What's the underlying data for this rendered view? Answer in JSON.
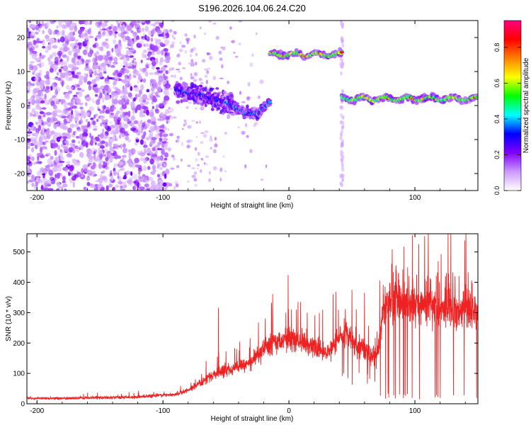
{
  "figure": {
    "title": "S196.2026.104.06.24.C20"
  },
  "chart_data": [
    {
      "type": "heatmap",
      "name": "spectrogram",
      "xlabel": "Height of straight line (km)",
      "ylabel": "Frequency (Hz)",
      "xlim": [
        -208,
        150
      ],
      "ylim": [
        -25,
        25
      ],
      "xticks": [
        -200,
        -100,
        0,
        100
      ],
      "yticks": [
        -20,
        -10,
        0,
        10,
        20
      ],
      "tick_labels_x": [
        "-200",
        "-100",
        "0",
        "100"
      ],
      "tick_labels_y": [
        "-20",
        "-10",
        "0",
        "10",
        "20"
      ],
      "colorbar": {
        "label": "Normalized spectral amplitude",
        "range": [
          0.0,
          0.95
        ],
        "ticks": [
          0.0,
          0.2,
          0.4,
          0.6,
          0.8
        ],
        "tick_labels": [
          "0.0",
          "0.2",
          "0.4",
          "0.6",
          "0.8"
        ],
        "colormap": [
          "#ffffff",
          "#cc99ff",
          "#8000ff",
          "#0000ff",
          "#00ffff",
          "#00ff00",
          "#ffff00",
          "#ff8000",
          "#ff0000",
          "#ff0080"
        ]
      },
      "features": [
        {
          "label": "noise scatter",
          "x_range": [
            -208,
            -96
          ],
          "freq_range": [
            -25,
            25
          ],
          "level": 0.05
        },
        {
          "label": "drifting line",
          "points": [
            [
              -90,
              4.5
            ],
            [
              -70,
              3.0
            ],
            [
              -55,
              1.5
            ],
            [
              -45,
              0.0
            ],
            [
              -35,
              -2.0
            ],
            [
              -25,
              -2.5
            ],
            [
              -15,
              1.0
            ]
          ],
          "level": 0.4
        },
        {
          "label": "line near 15 Hz",
          "x_range": [
            -15,
            42
          ],
          "freq": 15.0,
          "level": 0.8
        },
        {
          "label": "line near 2 Hz",
          "x_range": [
            42,
            150
          ],
          "freq": 2.0,
          "level": 0.8
        }
      ]
    },
    {
      "type": "line",
      "name": "snr",
      "xlabel": "Height of straight line (km)",
      "ylabel": "SNR (10 * v/v)",
      "xlim": [
        -208,
        150
      ],
      "ylim": [
        0,
        560
      ],
      "xticks": [
        -200,
        -100,
        0,
        100
      ],
      "yticks": [
        0,
        100,
        200,
        300,
        400,
        500
      ],
      "tick_labels_x": [
        "-200",
        "-100",
        "0",
        "100"
      ],
      "tick_labels_y": [
        "0",
        "100",
        "200",
        "300",
        "400",
        "500"
      ],
      "color": "#ee2222",
      "series": [
        {
          "name": "SNR envelope",
          "x": [
            -208,
            -180,
            -150,
            -120,
            -100,
            -90,
            -80,
            -70,
            -60,
            -50,
            -40,
            -30,
            -20,
            -10,
            0,
            10,
            20,
            30,
            35,
            40,
            45,
            50,
            55,
            60,
            65,
            70,
            75,
            80,
            90,
            98,
            100,
            110,
            120,
            130,
            140,
            150
          ],
          "y": [
            18,
            18,
            20,
            22,
            28,
            30,
            45,
            70,
            95,
            110,
            120,
            140,
            180,
            205,
            215,
            200,
            185,
            170,
            190,
            220,
            230,
            210,
            190,
            180,
            160,
            150,
            320,
            330,
            325,
            320,
            318,
            322,
            315,
            310,
            308,
            305
          ]
        }
      ],
      "peaks": [
        {
          "x": -56,
          "y": 315
        },
        {
          "x": 2,
          "y": 310
        },
        {
          "x": 35,
          "y": 360
        },
        {
          "x": 50,
          "y": 375
        },
        {
          "x": 60,
          "y": 365
        },
        {
          "x": 72,
          "y": 405
        },
        {
          "x": 85,
          "y": 455
        },
        {
          "x": 98,
          "y": 555
        },
        {
          "x": 108,
          "y": 410
        },
        {
          "x": 125,
          "y": 430
        },
        {
          "x": 145,
          "y": 405
        }
      ]
    }
  ]
}
